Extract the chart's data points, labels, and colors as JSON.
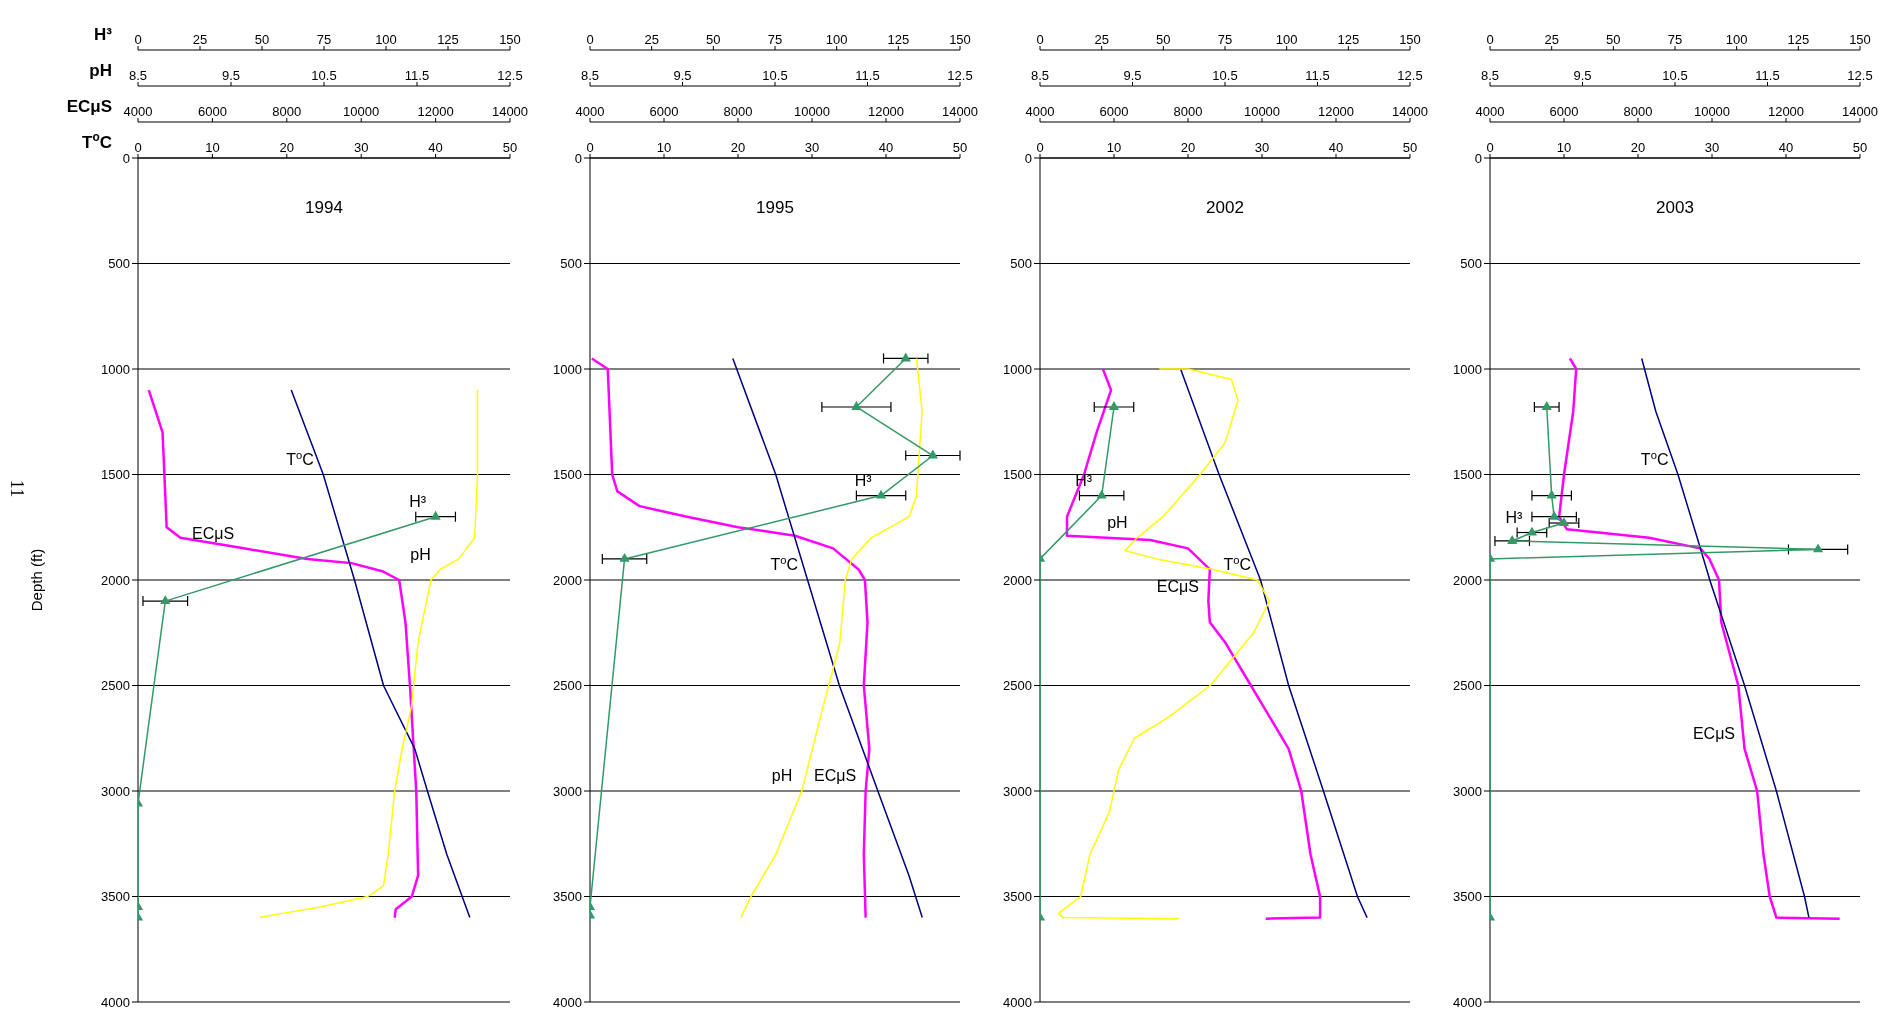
{
  "chart_data": [
    {
      "type": "line",
      "title": "1994",
      "ylabel": "Depth (ft)",
      "xlabel": "T$^{o}$C",
      "x2label": "ECμS",
      "annotations": [
        "11"
      ],
      "xlim": [
        0,
        50
      ],
      "xticks": [
        0,
        10,
        20,
        30,
        40,
        50
      ],
      "x2lim": [
        4000,
        14000
      ],
      "x2ticks": [
        4000,
        6000,
        8000,
        10000,
        12000,
        14000
      ],
      "ylim": [
        4000,
        0
      ],
      "yticks": [
        0,
        500,
        1000,
        1500,
        2000,
        2500,
        3000,
        3500,
        4000
      ],
      "grid": "y",
      "marker": "none",
      "series": [
        {
          "name": "ECμS",
          "color": "#ff00ff",
          "axis": "x2",
          "x": [
            4290,
            4660,
            4770,
            5140,
            6840,
            8550,
            9740,
            10590,
            11020,
            11190,
            11310,
            11480,
            11530,
            11360,
            10930,
            10900
          ],
          "values": [
            1100,
            1300,
            1750,
            1800,
            1850,
            1900,
            1920,
            1960,
            2000,
            2200,
            2500,
            3000,
            3400,
            3500,
            3560,
            3600
          ]
        },
        {
          "name": "T$^{o}$C",
          "color": "#000080",
          "x": [
            20.6,
            24.9,
            29.1,
            33.0,
            37.2,
            38.9,
            41.5,
            44.6
          ],
          "values": [
            1100,
            1500,
            2000,
            2500,
            2800,
            3000,
            3300,
            3600
          ]
        }
      ]
    },
    {
      "type": "line",
      "tick_labels": "x",
      "xlabel": "pH",
      "x2label": "H³",
      "xlim": [
        8.5,
        12.5
      ],
      "xticks": [
        8.5,
        9.5,
        10.5,
        11.5,
        12.5
      ],
      "x2lim": [
        0,
        150
      ],
      "x2ticks": [
        0,
        25,
        50,
        75,
        100,
        125,
        150
      ],
      "ylim": [
        4000,
        0
      ],
      "yticks": [
        0,
        500,
        1000,
        1500,
        2000,
        2500,
        3000,
        3500,
        4000
      ],
      "marker": "none",
      "series": [
        {
          "name": "pH",
          "color": "#ffff00",
          "x": [
            12.15,
            12.15,
            12.12,
            11.95,
            11.75,
            11.65,
            11.51,
            11.44,
            11.34,
            11.26,
            11.19,
            11.14,
            10.97,
            10.46,
            10.05,
            9.81
          ],
          "values": [
            1100,
            1500,
            1800,
            1900,
            1950,
            2000,
            2300,
            2600,
            2800,
            3000,
            3300,
            3450,
            3500,
            3550,
            3580,
            3600
          ]
        },
        {
          "name": "H³",
          "color": "#339966",
          "axis": "x2",
          "marker": "triangle",
          "x": [
            120,
            11,
            0,
            0,
            0
          ],
          "values": [
            1700,
            2100,
            3060,
            3550,
            3600
          ],
          "xerrors": [
            8,
            9,
            null,
            null,
            null
          ]
        }
      ]
    },
    {
      "type": "line",
      "title": "1995",
      "xlim": [
        0,
        50
      ],
      "xticks": [
        0,
        10,
        20,
        30,
        40,
        50
      ],
      "x2lim": [
        4000,
        14000
      ],
      "x2ticks": [
        4000,
        6000,
        8000,
        10000,
        12000,
        14000
      ],
      "ylim": [
        4000,
        0
      ],
      "yticks": [
        0,
        500,
        1000,
        1500,
        2000,
        2500,
        3000,
        3500,
        4000
      ],
      "grid": "y",
      "marker": "none",
      "series": [
        {
          "name": "ECμS",
          "color": "#ff00ff",
          "axis": "x2",
          "x": [
            4050,
            4480,
            4600,
            4740,
            5340,
            6620,
            8000,
            9540,
            10570,
            11260,
            11430,
            11500,
            11400,
            11550,
            11450,
            11400,
            11450
          ],
          "values": [
            950,
            1000,
            1500,
            1580,
            1650,
            1700,
            1750,
            1790,
            1850,
            1950,
            2000,
            2200,
            2500,
            2800,
            3000,
            3300,
            3600
          ]
        },
        {
          "name": "T$^{o}$C",
          "color": "#000080",
          "x": [
            19.3,
            25.1,
            29.4,
            33.7,
            38.9,
            43.1,
            44.9
          ],
          "values": [
            950,
            1500,
            2000,
            2500,
            3000,
            3400,
            3600
          ]
        }
      ]
    },
    {
      "type": "line",
      "tick_labels": "x",
      "xlim": [
        8.5,
        12.5
      ],
      "xticks": [
        8.5,
        9.5,
        10.5,
        11.5,
        12.5
      ],
      "x2lim": [
        0,
        150
      ],
      "x2ticks": [
        0,
        25,
        50,
        75,
        100,
        125,
        150
      ],
      "ylim": [
        4000,
        0
      ],
      "yticks": [
        0,
        500,
        1000,
        1500,
        2000,
        2500,
        3000,
        3500,
        4000
      ],
      "marker": "none",
      "series": [
        {
          "name": "pH",
          "color": "#ffff00",
          "x": [
            12.03,
            12.09,
            12.03,
            11.95,
            11.54,
            11.33,
            11.26,
            11.2,
            11.02,
            10.79,
            10.51,
            10.24,
            10.13
          ],
          "values": [
            950,
            1200,
            1600,
            1700,
            1800,
            1900,
            2000,
            2300,
            2600,
            3000,
            3300,
            3500,
            3600
          ]
        },
        {
          "name": "H³",
          "color": "#339966",
          "axis": "x2",
          "marker": "triangle",
          "x": [
            128,
            108,
            139,
            118,
            14,
            0,
            0
          ],
          "values": [
            950,
            1180,
            1410,
            1600,
            1900,
            3550,
            3590
          ],
          "xerrors": [
            9,
            14,
            11,
            10,
            9,
            null,
            null
          ]
        }
      ]
    },
    {
      "type": "line",
      "title": "2002",
      "xlim": [
        0,
        50
      ],
      "xticks": [
        0,
        10,
        20,
        30,
        40,
        50
      ],
      "x2lim": [
        4000,
        14000
      ],
      "x2ticks": [
        4000,
        6000,
        8000,
        10000,
        12000,
        14000
      ],
      "ylim": [
        4000,
        0
      ],
      "yticks": [
        0,
        500,
        1000,
        1500,
        2000,
        2500,
        3000,
        3500,
        4000
      ],
      "grid": "y",
      "marker": "none",
      "series": [
        {
          "name": "ECμS",
          "color": "#ff00ff",
          "axis": "x2",
          "x": [
            5700,
            5920,
            5530,
            5190,
            4730,
            4730,
            6980,
            8000,
            8590,
            8550,
            8590,
            9020,
            9700,
            10720,
            11060,
            11310,
            11570,
            11570,
            10100
          ],
          "values": [
            1000,
            1100,
            1300,
            1500,
            1700,
            1790,
            1810,
            1850,
            1950,
            2100,
            2200,
            2300,
            2500,
            2800,
            3000,
            3300,
            3500,
            3600,
            3605
          ]
        },
        {
          "name": "T$^{o}$C",
          "color": "#000080",
          "x": [
            19,
            24.2,
            29.8,
            33.6,
            38.3,
            42.9,
            44.2
          ],
          "values": [
            1000,
            1500,
            2000,
            2500,
            3000,
            3500,
            3600
          ]
        }
      ]
    },
    {
      "type": "line",
      "tick_labels": "x",
      "xlim": [
        8.5,
        12.5
      ],
      "xticks": [
        8.5,
        9.5,
        10.5,
        11.5,
        12.5
      ],
      "x2lim": [
        0,
        150
      ],
      "x2ticks": [
        0,
        25,
        50,
        75,
        100,
        125,
        150
      ],
      "ylim": [
        4000,
        0
      ],
      "yticks": [
        0,
        500,
        1000,
        1500,
        2000,
        2500,
        3000,
        3500,
        4000
      ],
      "marker": "none",
      "series": [
        {
          "name": "pH",
          "color": "#ffff00",
          "x": [
            9.79,
            10.1,
            10.57,
            10.64,
            10.5,
            10.23,
            9.83,
            9.55,
            9.42,
            9.76,
            10.37,
            10.85,
            10.98,
            10.81,
            10.34,
            9.89,
            9.52,
            9.35,
            9.25,
            9.04,
            8.94,
            8.7,
            8.75,
            10.0
          ],
          "values": [
            1000,
            1000,
            1050,
            1150,
            1350,
            1500,
            1700,
            1800,
            1860,
            1900,
            1950,
            2000,
            2100,
            2250,
            2500,
            2650,
            2750,
            2900,
            3100,
            3300,
            3500,
            3580,
            3600,
            3605
          ]
        },
        {
          "name": "H³",
          "color": "#339966",
          "axis": "x2",
          "marker": "triangle",
          "x": [
            30,
            25,
            0,
            0
          ],
          "values": [
            1180,
            1600,
            1900,
            3600
          ],
          "xerrors": [
            8,
            9,
            null,
            null
          ]
        }
      ]
    },
    {
      "type": "line",
      "title": "2003",
      "xlim": [
        0,
        50
      ],
      "xticks": [
        0,
        10,
        20,
        30,
        40,
        50
      ],
      "x2lim": [
        4000,
        14000
      ],
      "x2ticks": [
        4000,
        6000,
        8000,
        10000,
        12000,
        14000
      ],
      "ylim": [
        4000,
        0
      ],
      "yticks": [
        0,
        500,
        1000,
        1500,
        2000,
        2500,
        3000,
        3500,
        4000
      ],
      "grid": "y",
      "marker": "none",
      "series": [
        {
          "name": "ECμS",
          "color": "#ff00ff",
          "axis": "x2",
          "x": [
            6160,
            6330,
            6250,
            6000,
            5870,
            6080,
            8300,
            9680,
            9930,
            10190,
            10250,
            10710,
            10880,
            11220,
            11390,
            11560,
            11740,
            13450
          ],
          "values": [
            950,
            1000,
            1200,
            1500,
            1700,
            1760,
            1800,
            1850,
            1900,
            2000,
            2200,
            2500,
            2800,
            3000,
            3300,
            3500,
            3600,
            3605
          ]
        },
        {
          "name": "T$^{o}$C",
          "color": "#000080",
          "x": [
            20.5,
            22.4,
            25.4,
            28,
            29.7,
            34.4,
            38.7,
            42.5,
            43.1
          ],
          "values": [
            950,
            1200,
            1500,
            1800,
            2000,
            2500,
            3000,
            3500,
            3600
          ]
        }
      ]
    },
    {
      "type": "line",
      "tick_labels": "x",
      "xlim": [
        8.5,
        12.5
      ],
      "xticks": [
        8.5,
        9.5,
        10.5,
        11.5,
        12.5
      ],
      "x2lim": [
        0,
        150
      ],
      "x2ticks": [
        0,
        25,
        50,
        75,
        100,
        125,
        150
      ],
      "ylim": [
        4000,
        0
      ],
      "yticks": [
        0,
        500,
        1000,
        1500,
        2000,
        2500,
        3000,
        3500,
        4000
      ],
      "series": [
        {
          "name": "H³",
          "color": "#339966",
          "axis": "x2",
          "marker": "triangle",
          "x": [
            23,
            25,
            26,
            30,
            17,
            9,
            133,
            0,
            0
          ],
          "values": [
            1180,
            1600,
            1700,
            1730,
            1775,
            1815,
            1855,
            1900,
            3600
          ],
          "xerrors": [
            5,
            8,
            9,
            6,
            6,
            7,
            12,
            null,
            null
          ]
        }
      ]
    }
  ]
}
